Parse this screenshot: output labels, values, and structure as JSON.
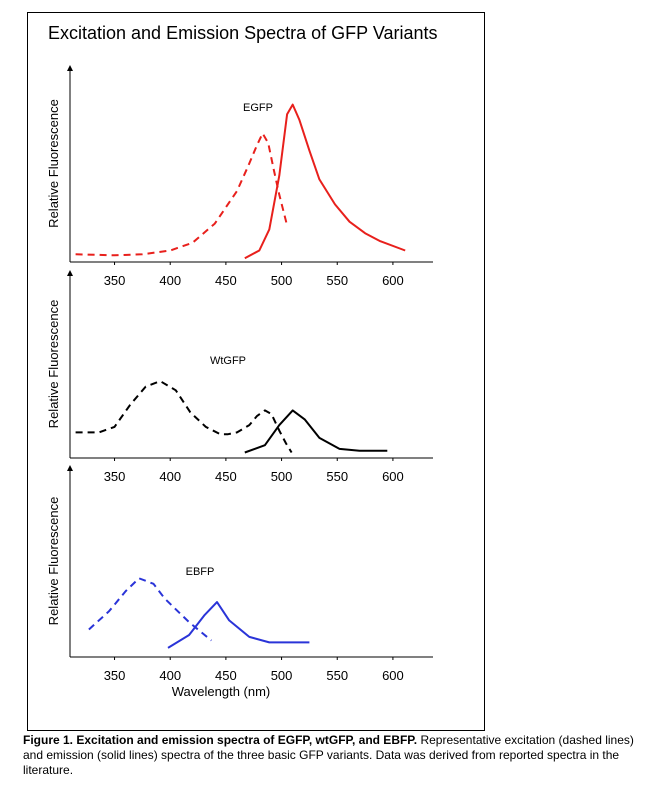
{
  "title": "Excitation and Emission Spectra of GFP Variants",
  "chart_data": [
    {
      "type": "line",
      "label": "EGFP",
      "ylabel": "Relative Fluorescence",
      "xlim": [
        310,
        636
      ],
      "xticks": [
        350,
        400,
        450,
        500,
        550,
        600
      ],
      "ylim": [
        0,
        100
      ],
      "series": [
        {
          "color": "#e8201c",
          "linestyle": "dashed",
          "x": [
            315,
            350,
            375,
            400,
            420,
            440,
            460,
            470,
            478,
            483,
            488,
            493,
            498,
            505
          ],
          "values": [
            4,
            3.5,
            4,
            6,
            10,
            20,
            37,
            50,
            61,
            67,
            62,
            48,
            35,
            19
          ]
        },
        {
          "color": "#e8201c",
          "linestyle": "solid",
          "x": [
            467,
            480,
            489,
            498,
            505,
            510,
            516,
            525,
            534,
            548,
            561,
            575,
            588,
            611
          ],
          "values": [
            2,
            6,
            17,
            45,
            77,
            82,
            74,
            58,
            43,
            30,
            21,
            15,
            11,
            6
          ]
        }
      ]
    },
    {
      "type": "line",
      "label": "WtGFP",
      "ylabel": "Relative Fluorescence",
      "xlim": [
        310,
        636
      ],
      "xticks": [
        350,
        400,
        450,
        500,
        550,
        600
      ],
      "ylim": [
        0,
        100
      ],
      "series": [
        {
          "color": "#000000",
          "linestyle": "dashed",
          "x": [
            315,
            336,
            350,
            364,
            378,
            391,
            405,
            418,
            432,
            445,
            452,
            460,
            471,
            478,
            485,
            491,
            498,
            504,
            509
          ],
          "values": [
            14,
            14,
            17,
            29,
            39,
            42,
            37,
            25,
            17,
            13,
            13,
            14,
            18,
            23,
            26,
            24,
            15,
            8,
            3
          ]
        },
        {
          "color": "#000000",
          "linestyle": "solid",
          "x": [
            467,
            485,
            498,
            510,
            521,
            534,
            552,
            570,
            595
          ],
          "values": [
            3,
            7,
            18,
            26,
            21,
            11,
            5,
            4,
            4
          ]
        }
      ]
    },
    {
      "type": "line",
      "label": "EBFP",
      "ylabel": "Relative Fluorescence",
      "xlabel": "Wavelength (nm)",
      "xlim": [
        310,
        636
      ],
      "xticks": [
        350,
        400,
        450,
        500,
        550,
        600
      ],
      "ylim": [
        0,
        100
      ],
      "series": [
        {
          "color": "#2a34d8",
          "linestyle": "dashed",
          "x": [
            327,
            345,
            360,
            372,
            385,
            395,
            417,
            437
          ],
          "values": [
            15,
            25,
            36,
            43,
            40,
            32,
            19,
            9
          ]
        },
        {
          "color": "#2a34d8",
          "linestyle": "solid",
          "x": [
            398,
            417,
            431,
            442,
            453,
            471,
            489,
            525
          ],
          "values": [
            5,
            12,
            23,
            30,
            20,
            11,
            8,
            8
          ]
        }
      ]
    }
  ],
  "caption": {
    "bold": "Figure 1.  Excitation and emission spectra of EGFP, wtGFP, and EBFP.",
    "text": "Representative excitation (dashed lines) and emission (solid lines) spectra of the three basic GFP variants.  Data was derived from reported spectra in the literature."
  }
}
